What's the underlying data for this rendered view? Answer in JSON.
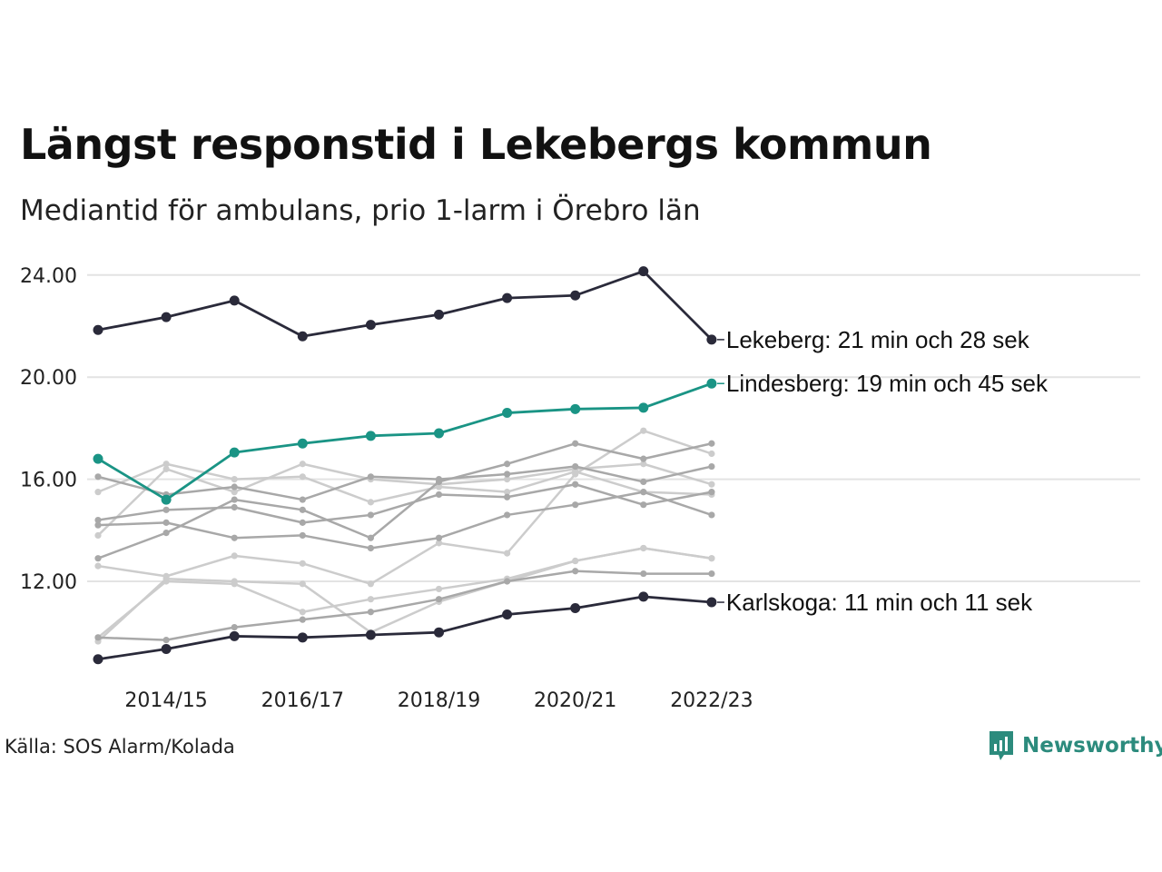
{
  "title": "Längst responstid i Lekebergs kommun",
  "subtitle": "Mediantid för ambulans, prio 1-larm i Örebro län",
  "source": "Källa: SOS Alarm/Kolada",
  "brand": "Newsworthy",
  "colors": {
    "highlight_dark": "#2a2a3a",
    "highlight_teal": "#1a9485",
    "grey_dark": "#a8a8a8",
    "grey_light": "#cccccc",
    "grid": "#e3e3e3",
    "brand": "#2c8b7d"
  },
  "chart_data": {
    "type": "line",
    "x": [
      "2013/14",
      "2014/15",
      "2015/16",
      "2016/17",
      "2017/18",
      "2018/19",
      "2019/20",
      "2020/21",
      "2021/22",
      "2022/23"
    ],
    "x_tick_labels": [
      "2014/15",
      "2016/17",
      "2018/19",
      "2020/21",
      "2022/23"
    ],
    "y_ticks": [
      12,
      16,
      20,
      24
    ],
    "y_tick_labels": [
      "12.00",
      "16.00",
      "20.00",
      "24.00"
    ],
    "ylim": [
      8.4,
      24.6
    ],
    "grid": true,
    "series": [
      {
        "name": "",
        "style": "light",
        "values": [
          9.65,
          12.1,
          12.0,
          11.9,
          10.0,
          11.2,
          12.0,
          12.8,
          13.3,
          12.9
        ]
      },
      {
        "name": "",
        "style": "light",
        "values": [
          12.6,
          12.2,
          13.0,
          12.7,
          11.9,
          13.5,
          13.1,
          16.2,
          17.9,
          17.0
        ]
      },
      {
        "name": "",
        "style": "light",
        "values": [
          9.8,
          12.0,
          11.9,
          10.8,
          11.3,
          11.7,
          12.1,
          12.8,
          13.3,
          12.9
        ]
      },
      {
        "name": "",
        "style": "light",
        "values": [
          15.5,
          16.6,
          16.0,
          16.1,
          15.1,
          15.7,
          15.5,
          16.3,
          15.5,
          15.4
        ]
      },
      {
        "name": "",
        "style": "light",
        "values": [
          13.8,
          16.4,
          15.5,
          16.6,
          16.0,
          15.8,
          16.0,
          16.4,
          16.6,
          15.8
        ]
      },
      {
        "name": "",
        "style": "dark",
        "values": [
          14.2,
          14.3,
          13.7,
          13.8,
          13.3,
          13.7,
          14.6,
          15.0,
          15.5,
          14.6
        ]
      },
      {
        "name": "",
        "style": "dark",
        "values": [
          12.9,
          13.9,
          15.2,
          14.8,
          13.7,
          15.9,
          16.6,
          17.4,
          16.8,
          17.4
        ]
      },
      {
        "name": "",
        "style": "dark",
        "values": [
          16.1,
          15.4,
          15.7,
          15.2,
          16.1,
          16.0,
          16.2,
          16.5,
          15.9,
          16.5
        ]
      },
      {
        "name": "",
        "style": "dark",
        "values": [
          14.4,
          14.8,
          14.9,
          14.3,
          14.6,
          15.4,
          15.3,
          15.8,
          15.0,
          15.5
        ]
      },
      {
        "name": "",
        "style": "dark",
        "values": [
          9.8,
          9.7,
          10.2,
          10.5,
          10.8,
          11.3,
          12.0,
          12.4,
          12.3,
          12.3
        ]
      },
      {
        "name": "Lekeberg",
        "style": "highlight_dark",
        "label": "Lekeberg: 21 min och 28 sek",
        "values": [
          21.85,
          22.35,
          23.0,
          21.6,
          22.05,
          22.45,
          23.1,
          23.2,
          24.15,
          21.47
        ]
      },
      {
        "name": "Lindesberg",
        "style": "highlight_teal",
        "label": "Lindesberg: 19 min och 45 sek",
        "values": [
          16.8,
          15.2,
          17.05,
          17.4,
          17.7,
          17.8,
          18.6,
          18.75,
          18.8,
          19.75
        ]
      },
      {
        "name": "Karlskoga",
        "style": "highlight_dark",
        "label": "Karlskoga: 11 min och 11 sek",
        "values": [
          8.95,
          9.35,
          9.85,
          9.8,
          9.9,
          10.0,
          10.7,
          10.95,
          11.4,
          11.18
        ]
      }
    ]
  }
}
